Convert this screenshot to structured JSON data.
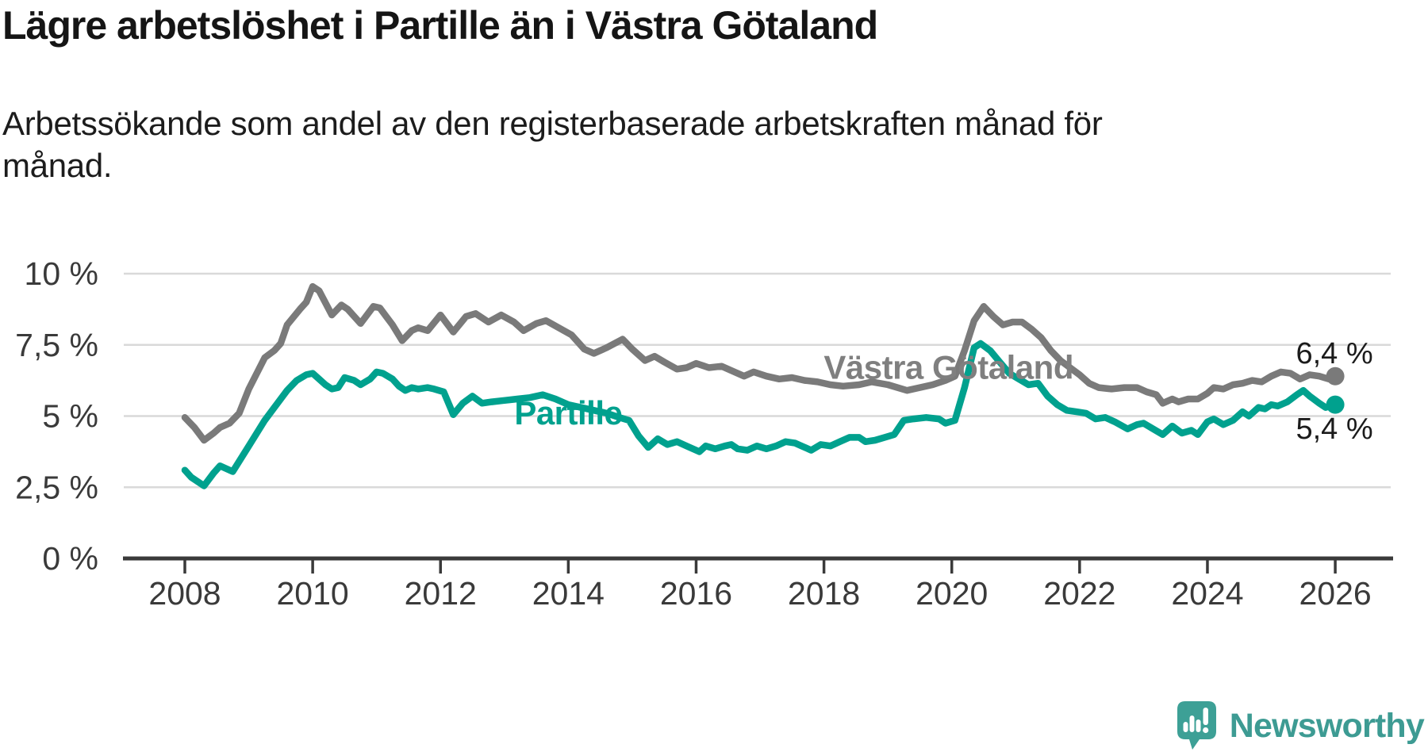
{
  "branding": {
    "logo_text": "Newsworthy",
    "logo_icon": "newsworthy-speech-bubble-bar-chart-icon"
  },
  "colors": {
    "partille_teal": "#00a18e",
    "region_gray": "#7a7a7a",
    "grid": "#d9d9d9",
    "axis": "#3a3a3a",
    "value_label_text": "#1b1b1b",
    "logo_teal": "#3d9b93",
    "background": "#ffffff"
  },
  "chart_data": {
    "type": "line",
    "title": "Lägre arbetslöshet i Partille än i Västra Götaland",
    "subtitle": "Arbetssökande som andel av den registerbaserade arbetskraften månad för\nmånad.",
    "grid": "horizontal-only",
    "legend_position": "inline-series-labels",
    "x_axis": {
      "ticks": [
        2008,
        2010,
        2012,
        2014,
        2016,
        2018,
        2020,
        2022,
        2024,
        2026
      ],
      "range": [
        2007.05,
        2026.85
      ],
      "unit": "year"
    },
    "y_axis": {
      "tick_values": [
        0,
        2.5,
        5,
        7.5,
        10
      ],
      "tick_labels": [
        "0 %",
        "2,5 %",
        "5 %",
        "7,5 %",
        "10 %"
      ],
      "range": [
        0,
        10.3
      ],
      "unit": "percent"
    },
    "series": [
      {
        "name": "Västra Götaland",
        "color": "#7a7a7a",
        "label_color": "#7f7f7f",
        "end_label": "6,4 %",
        "end_value": 6.4,
        "end_label_position": "above",
        "label_pos": {
          "x": 2019.95,
          "y": 6.7
        },
        "points": [
          [
            2008.0,
            4.95
          ],
          [
            2008.15,
            4.6
          ],
          [
            2008.3,
            4.15
          ],
          [
            2008.45,
            4.4
          ],
          [
            2008.55,
            4.6
          ],
          [
            2008.7,
            4.75
          ],
          [
            2008.85,
            5.1
          ],
          [
            2009.0,
            5.95
          ],
          [
            2009.25,
            7.05
          ],
          [
            2009.4,
            7.3
          ],
          [
            2009.5,
            7.55
          ],
          [
            2009.6,
            8.2
          ],
          [
            2009.8,
            8.75
          ],
          [
            2009.9,
            9.0
          ],
          [
            2010.0,
            9.55
          ],
          [
            2010.1,
            9.4
          ],
          [
            2010.3,
            8.55
          ],
          [
            2010.45,
            8.9
          ],
          [
            2010.55,
            8.75
          ],
          [
            2010.75,
            8.25
          ],
          [
            2010.95,
            8.85
          ],
          [
            2011.05,
            8.8
          ],
          [
            2011.15,
            8.5
          ],
          [
            2011.25,
            8.2
          ],
          [
            2011.4,
            7.65
          ],
          [
            2011.55,
            8.0
          ],
          [
            2011.65,
            8.1
          ],
          [
            2011.8,
            8.0
          ],
          [
            2012.0,
            8.55
          ],
          [
            2012.2,
            7.95
          ],
          [
            2012.4,
            8.5
          ],
          [
            2012.55,
            8.6
          ],
          [
            2012.75,
            8.3
          ],
          [
            2012.95,
            8.55
          ],
          [
            2013.15,
            8.3
          ],
          [
            2013.3,
            8.0
          ],
          [
            2013.5,
            8.25
          ],
          [
            2013.65,
            8.35
          ],
          [
            2013.85,
            8.1
          ],
          [
            2014.05,
            7.85
          ],
          [
            2014.25,
            7.35
          ],
          [
            2014.4,
            7.2
          ],
          [
            2014.6,
            7.4
          ],
          [
            2014.85,
            7.7
          ],
          [
            2015.0,
            7.35
          ],
          [
            2015.2,
            6.95
          ],
          [
            2015.35,
            7.1
          ],
          [
            2015.5,
            6.9
          ],
          [
            2015.7,
            6.65
          ],
          [
            2015.85,
            6.7
          ],
          [
            2016.0,
            6.85
          ],
          [
            2016.2,
            6.7
          ],
          [
            2016.4,
            6.75
          ],
          [
            2016.6,
            6.55
          ],
          [
            2016.75,
            6.4
          ],
          [
            2016.9,
            6.55
          ],
          [
            2017.1,
            6.4
          ],
          [
            2017.3,
            6.3
          ],
          [
            2017.5,
            6.35
          ],
          [
            2017.7,
            6.25
          ],
          [
            2017.9,
            6.2
          ],
          [
            2018.1,
            6.1
          ],
          [
            2018.3,
            6.05
          ],
          [
            2018.55,
            6.1
          ],
          [
            2018.75,
            6.2
          ],
          [
            2019.0,
            6.1
          ],
          [
            2019.3,
            5.9
          ],
          [
            2019.5,
            6.0
          ],
          [
            2019.7,
            6.1
          ],
          [
            2019.9,
            6.25
          ],
          [
            2020.05,
            6.4
          ],
          [
            2020.2,
            7.3
          ],
          [
            2020.35,
            8.35
          ],
          [
            2020.5,
            8.85
          ],
          [
            2020.65,
            8.5
          ],
          [
            2020.8,
            8.2
          ],
          [
            2020.95,
            8.3
          ],
          [
            2021.1,
            8.3
          ],
          [
            2021.25,
            8.05
          ],
          [
            2021.4,
            7.75
          ],
          [
            2021.55,
            7.3
          ],
          [
            2021.7,
            6.95
          ],
          [
            2021.85,
            6.7
          ],
          [
            2022.0,
            6.45
          ],
          [
            2022.15,
            6.15
          ],
          [
            2022.3,
            6.0
          ],
          [
            2022.5,
            5.95
          ],
          [
            2022.7,
            6.0
          ],
          [
            2022.9,
            6.0
          ],
          [
            2023.05,
            5.85
          ],
          [
            2023.2,
            5.75
          ],
          [
            2023.3,
            5.45
          ],
          [
            2023.45,
            5.6
          ],
          [
            2023.55,
            5.5
          ],
          [
            2023.7,
            5.6
          ],
          [
            2023.85,
            5.6
          ],
          [
            2024.0,
            5.8
          ],
          [
            2024.1,
            6.0
          ],
          [
            2024.25,
            5.95
          ],
          [
            2024.4,
            6.1
          ],
          [
            2024.55,
            6.15
          ],
          [
            2024.7,
            6.25
          ],
          [
            2024.85,
            6.2
          ],
          [
            2025.0,
            6.4
          ],
          [
            2025.15,
            6.55
          ],
          [
            2025.3,
            6.5
          ],
          [
            2025.45,
            6.3
          ],
          [
            2025.6,
            6.45
          ],
          [
            2025.75,
            6.4
          ],
          [
            2025.9,
            6.3
          ],
          [
            2026.0,
            6.4
          ]
        ]
      },
      {
        "name": "Partille",
        "color": "#00a18e",
        "label_color": "#00a18e",
        "end_label": "5,4 %",
        "end_value": 5.4,
        "end_label_position": "below",
        "label_pos": {
          "x": 2014.0,
          "y": 5.1
        },
        "points": [
          [
            2008.0,
            3.1
          ],
          [
            2008.1,
            2.85
          ],
          [
            2008.3,
            2.55
          ],
          [
            2008.45,
            3.0
          ],
          [
            2008.55,
            3.25
          ],
          [
            2008.75,
            3.05
          ],
          [
            2009.0,
            3.95
          ],
          [
            2009.25,
            4.85
          ],
          [
            2009.4,
            5.3
          ],
          [
            2009.6,
            5.9
          ],
          [
            2009.75,
            6.25
          ],
          [
            2009.9,
            6.45
          ],
          [
            2010.0,
            6.5
          ],
          [
            2010.1,
            6.3
          ],
          [
            2010.2,
            6.1
          ],
          [
            2010.3,
            5.95
          ],
          [
            2010.4,
            6.0
          ],
          [
            2010.5,
            6.35
          ],
          [
            2010.65,
            6.25
          ],
          [
            2010.75,
            6.1
          ],
          [
            2010.9,
            6.3
          ],
          [
            2011.0,
            6.55
          ],
          [
            2011.1,
            6.5
          ],
          [
            2011.25,
            6.3
          ],
          [
            2011.35,
            6.05
          ],
          [
            2011.45,
            5.9
          ],
          [
            2011.55,
            6.0
          ],
          [
            2011.65,
            5.95
          ],
          [
            2011.8,
            6.0
          ],
          [
            2011.9,
            5.95
          ],
          [
            2012.05,
            5.85
          ],
          [
            2012.2,
            5.05
          ],
          [
            2012.35,
            5.45
          ],
          [
            2012.5,
            5.7
          ],
          [
            2012.65,
            5.45
          ],
          [
            2012.8,
            5.5
          ],
          [
            2013.0,
            5.55
          ],
          [
            2013.2,
            5.6
          ],
          [
            2013.4,
            5.65
          ],
          [
            2013.6,
            5.75
          ],
          [
            2013.8,
            5.6
          ],
          [
            2014.0,
            5.4
          ],
          [
            2014.2,
            5.3
          ],
          [
            2014.4,
            5.2
          ],
          [
            2014.6,
            5.1
          ],
          [
            2014.8,
            4.95
          ],
          [
            2014.95,
            4.85
          ],
          [
            2015.1,
            4.3
          ],
          [
            2015.25,
            3.9
          ],
          [
            2015.4,
            4.2
          ],
          [
            2015.55,
            4.0
          ],
          [
            2015.7,
            4.1
          ],
          [
            2015.85,
            3.95
          ],
          [
            2016.05,
            3.75
          ],
          [
            2016.15,
            3.95
          ],
          [
            2016.3,
            3.85
          ],
          [
            2016.45,
            3.95
          ],
          [
            2016.55,
            4.0
          ],
          [
            2016.65,
            3.85
          ],
          [
            2016.8,
            3.8
          ],
          [
            2016.95,
            3.95
          ],
          [
            2017.1,
            3.85
          ],
          [
            2017.25,
            3.95
          ],
          [
            2017.4,
            4.1
          ],
          [
            2017.55,
            4.05
          ],
          [
            2017.65,
            3.95
          ],
          [
            2017.8,
            3.8
          ],
          [
            2017.95,
            4.0
          ],
          [
            2018.1,
            3.95
          ],
          [
            2018.25,
            4.1
          ],
          [
            2018.4,
            4.25
          ],
          [
            2018.55,
            4.25
          ],
          [
            2018.65,
            4.1
          ],
          [
            2018.8,
            4.15
          ],
          [
            2018.95,
            4.25
          ],
          [
            2019.1,
            4.35
          ],
          [
            2019.25,
            4.85
          ],
          [
            2019.4,
            4.9
          ],
          [
            2019.6,
            4.95
          ],
          [
            2019.8,
            4.9
          ],
          [
            2019.9,
            4.75
          ],
          [
            2020.05,
            4.85
          ],
          [
            2020.2,
            6.0
          ],
          [
            2020.35,
            7.4
          ],
          [
            2020.45,
            7.55
          ],
          [
            2020.6,
            7.3
          ],
          [
            2020.75,
            6.9
          ],
          [
            2020.9,
            6.5
          ],
          [
            2021.05,
            6.3
          ],
          [
            2021.2,
            6.1
          ],
          [
            2021.35,
            6.15
          ],
          [
            2021.5,
            5.7
          ],
          [
            2021.65,
            5.4
          ],
          [
            2021.8,
            5.2
          ],
          [
            2021.95,
            5.15
          ],
          [
            2022.1,
            5.1
          ],
          [
            2022.25,
            4.9
          ],
          [
            2022.4,
            4.95
          ],
          [
            2022.55,
            4.8
          ],
          [
            2022.75,
            4.55
          ],
          [
            2022.9,
            4.7
          ],
          [
            2023.0,
            4.75
          ],
          [
            2023.15,
            4.55
          ],
          [
            2023.3,
            4.35
          ],
          [
            2023.45,
            4.65
          ],
          [
            2023.6,
            4.4
          ],
          [
            2023.75,
            4.5
          ],
          [
            2023.85,
            4.35
          ],
          [
            2024.0,
            4.8
          ],
          [
            2024.1,
            4.9
          ],
          [
            2024.25,
            4.7
          ],
          [
            2024.4,
            4.85
          ],
          [
            2024.55,
            5.15
          ],
          [
            2024.65,
            5.0
          ],
          [
            2024.8,
            5.3
          ],
          [
            2024.9,
            5.25
          ],
          [
            2025.0,
            5.4
          ],
          [
            2025.1,
            5.35
          ],
          [
            2025.25,
            5.5
          ],
          [
            2025.4,
            5.75
          ],
          [
            2025.5,
            5.9
          ],
          [
            2025.6,
            5.7
          ],
          [
            2025.75,
            5.45
          ],
          [
            2025.85,
            5.3
          ],
          [
            2026.0,
            5.4
          ]
        ]
      }
    ]
  }
}
